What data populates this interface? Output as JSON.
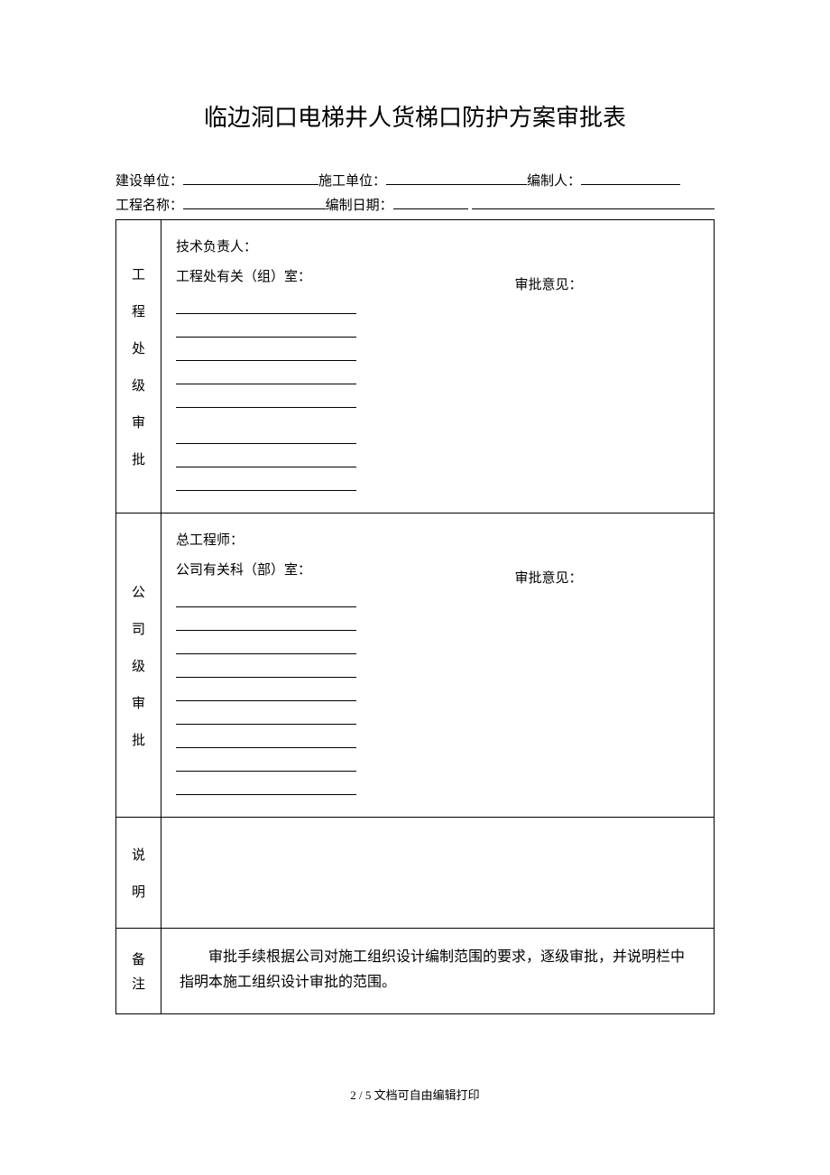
{
  "title": "临边洞口电梯井人货梯口防护方案审批表",
  "header": {
    "field1_label": "建设单位：",
    "field2_label": "施工单位：",
    "field3_label": "编制人：",
    "field4_label": "工程名称：",
    "field5_label": "编制日期："
  },
  "section1": {
    "label_chars": [
      "工",
      "程",
      "处",
      "级",
      "审",
      "批"
    ],
    "line1": "技术负责人：",
    "line2": "工程处有关（组）室：",
    "right_label": "审批意见："
  },
  "section2": {
    "label_chars": [
      "公",
      "司",
      "级",
      "审",
      "批"
    ],
    "line1": "总工程师：",
    "line2": "公司有关科（部）室：",
    "right_label": "审批意见："
  },
  "section3": {
    "label_chars": [
      "说",
      "明"
    ]
  },
  "section4": {
    "label_chars": [
      "备",
      "注"
    ],
    "content": "审批手续根据公司对施工组织设计编制范围的要求，逐级审批，并说明栏中指明本施工组织设计审批的范围。"
  },
  "footer": {
    "page": "2 / 5",
    "text": "文档可自由编辑打印"
  },
  "style": {
    "underline_widths": {
      "f1": 150,
      "f2": 156,
      "f3": 110,
      "f4": 170,
      "f5": 90,
      "f5_after": 290
    }
  }
}
